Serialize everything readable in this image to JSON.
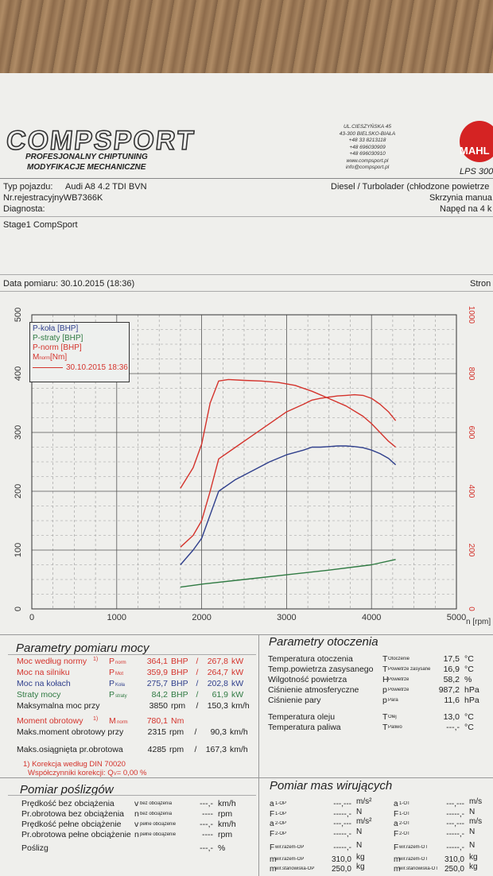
{
  "header": {
    "logo_text": "COMPSPORT",
    "tagline1": "PROFESJONALNY CHIPTUNING",
    "tagline2": "MODYFIKACJE MECHANICZNE",
    "address": [
      "UL.CIESZYŃSKA 45",
      "43-300 BIELSKO-BIAŁA",
      "+48 33 8213118",
      "+48 696030909",
      "+48 696030910",
      "www.compsport.pl",
      "info@compsport.pl"
    ],
    "brand2": "MAHL",
    "brand2_model": "LPS 300"
  },
  "vehicle": {
    "type_label": "Typ pojazdu:",
    "type_value": "Audi A8 4.2 TDI BVN",
    "reg_label": "Nr.rejestracyjny",
    "reg_value": "WB7366K",
    "diag_label": "Diagnosta:",
    "engine": "Diesel / Turbolader (chłodzone powietrze",
    "gearbox": "Skrzynia manua",
    "drive": "Napęd na 4 k",
    "stage": "Stage1 CompSport"
  },
  "measurement": {
    "date_label": "Data pomiaru: 30.10.2015 (18:36)",
    "page_label": "Stron"
  },
  "chart_data": {
    "type": "line",
    "x_unit": "n [rpm]",
    "xlim": [
      0,
      5000
    ],
    "ylim_left": [
      0,
      500
    ],
    "ylim_right": [
      0,
      1000
    ],
    "x_ticks": [
      0,
      1000,
      2000,
      3000,
      4000,
      5000
    ],
    "y_ticks_left": [
      0,
      100,
      200,
      300,
      400,
      500
    ],
    "y_ticks_right": [
      0,
      200,
      400,
      600,
      800,
      1000
    ],
    "grid": true,
    "legend_position": "top-left",
    "legend_date": "30.10.2015 18:36",
    "series": [
      {
        "name": "P-koła [BHP]",
        "color": "#2f3f8c",
        "axis": "left",
        "x": [
          1750,
          1900,
          2000,
          2100,
          2200,
          2400,
          2600,
          2800,
          3000,
          3200,
          3300,
          3400,
          3500,
          3600,
          3700,
          3800,
          3900,
          4000,
          4100,
          4200,
          4285
        ],
        "y": [
          75,
          100,
          120,
          160,
          200,
          220,
          235,
          250,
          262,
          270,
          275,
          275,
          276,
          277,
          277,
          276,
          274,
          270,
          264,
          256,
          245
        ]
      },
      {
        "name": "P-straty [BHP]",
        "color": "#2f7a42",
        "axis": "left",
        "x": [
          1750,
          2000,
          2500,
          3000,
          3500,
          4000,
          4285
        ],
        "y": [
          37,
          42,
          50,
          58,
          66,
          75,
          84
        ]
      },
      {
        "name": "P-norm [BHP]",
        "color": "#d4332c",
        "axis": "left",
        "x": [
          1750,
          1900,
          2000,
          2100,
          2200,
          2400,
          2600,
          2800,
          3000,
          3200,
          3300,
          3400,
          3500,
          3600,
          3700,
          3800,
          3900,
          4000,
          4100,
          4200,
          4285
        ],
        "y": [
          105,
          125,
          150,
          200,
          255,
          275,
          295,
          315,
          335,
          348,
          355,
          358,
          360,
          362,
          363,
          364,
          363,
          358,
          348,
          335,
          320
        ]
      },
      {
        "name": "M",
        "name_sub": "norm",
        "name_unit": "[Nm]",
        "color": "#d4332c",
        "axis": "right",
        "x": [
          1750,
          1900,
          2000,
          2100,
          2200,
          2315,
          2500,
          2700,
          2900,
          3100,
          3300,
          3500,
          3700,
          3900,
          4000,
          4100,
          4200,
          4285
        ],
        "y": [
          410,
          480,
          560,
          700,
          775,
          780,
          777,
          775,
          770,
          760,
          740,
          715,
          690,
          655,
          630,
          600,
          570,
          550
        ]
      }
    ]
  },
  "params": {
    "title": "Parametry pomiaru mocy",
    "rows": [
      {
        "label": "Moc według normy",
        "mark": "1)",
        "sym": "P",
        "sub": "norm",
        "v1": "364,1",
        "u1": "BHP",
        "sep": "/",
        "v2": "267,8",
        "u2": "kW",
        "cls": "red"
      },
      {
        "label": "Moc na silniku",
        "mark": "",
        "sym": "P",
        "sub": "Mot",
        "v1": "359,9",
        "u1": "BHP",
        "sep": "/",
        "v2": "264,7",
        "u2": "kW",
        "cls": "red"
      },
      {
        "label": "Moc na kołach",
        "mark": "",
        "sym": "P",
        "sub": "Koła",
        "v1": "275,7",
        "u1": "BHP",
        "sep": "/",
        "v2": "202,8",
        "u2": "kW",
        "cls": "blue"
      },
      {
        "label": "Straty mocy",
        "mark": "",
        "sym": "P",
        "sub": "straty",
        "v1": "84,2",
        "u1": "BHP",
        "sep": "/",
        "v2": "61,9",
        "u2": "kW",
        "cls": "green"
      },
      {
        "label": "Maksymalna moc przy",
        "mark": "",
        "sym": "",
        "sub": "",
        "v1": "3850",
        "u1": "rpm",
        "sep": "/",
        "v2": "150,3",
        "u2": "km/h",
        "cls": ""
      }
    ],
    "torque": {
      "label": "Moment obrotowy",
      "mark": "1)",
      "sym": "M",
      "sub": "norm",
      "v1": "780,1",
      "u1": "Nm"
    },
    "torque_rpm": {
      "label": "Maks.moment obrotowy przy",
      "v1": "2315",
      "u1": "rpm",
      "sep": "/",
      "v2": "90,3",
      "u2": "km/h"
    },
    "max_rpm": {
      "label": "Maks.osiągnięta pr.obrotowa",
      "v1": "4285",
      "u1": "rpm",
      "sep": "/",
      "v2": "167,3",
      "u2": "km/h"
    },
    "correction1": "1) Korekcja według DIN 70020",
    "correction2": "Współczynniki korekcji: Q",
    "correction_sub": "V",
    "correction_val": "=      0,00 %"
  },
  "env": {
    "title": "Parametry otoczenia",
    "rows": [
      {
        "label": "Temperatura otoczenia",
        "sym": "T",
        "sub": "Otoczenie",
        "val": "17,5",
        "unit": "°C"
      },
      {
        "label": "Temp.powietrza zasysanego",
        "sym": "T",
        "sub": "Powietrze zasysane",
        "val": "16,9",
        "unit": "°C"
      },
      {
        "label": "Wilgotność powietrza",
        "sym": "H",
        "sub": "Powietrze",
        "val": "58,2",
        "unit": "%"
      },
      {
        "label": "Ciśnienie atmosferyczne",
        "sym": "p",
        "sub": "Powietrze",
        "val": "987,2",
        "unit": "hPa"
      },
      {
        "label": "Ciśnienie pary",
        "sym": "p",
        "sub": "Para",
        "val": "11,6",
        "unit": "hPa"
      },
      {
        "label": "Temperatura oleju",
        "sym": "T",
        "sub": "Olej",
        "val": "13,0",
        "unit": "°C"
      },
      {
        "label": "Temperatura paliwa",
        "sym": "T",
        "sub": "Paliwo",
        "val": "---,-",
        "unit": "°C"
      }
    ]
  },
  "slip": {
    "title": "Pomiar poślizgów",
    "rows": [
      {
        "label": "Prędkość bez obciążenia",
        "sym": "v",
        "sub": "bez obciążenia",
        "val": "---,-",
        "unit": "km/h"
      },
      {
        "label": "Pr.obrotowa bez obciążenia",
        "sym": "n",
        "sub": "bez obciążenia",
        "val": "----",
        "unit": "rpm"
      },
      {
        "label": "Prędkość pełne obciążenie",
        "sym": "v",
        "sub": "pełne obciążenie",
        "val": "---,-",
        "unit": "km/h"
      },
      {
        "label": "Pr.obrotowa pełne obciążenie",
        "sym": "n",
        "sub": "pełne obciążenie",
        "val": "----",
        "unit": "rpm"
      },
      {
        "label": "Poślizg",
        "sym": "",
        "sub": "",
        "val": "---,-",
        "unit": "%"
      }
    ]
  },
  "mass": {
    "title": "Pomiar mas wirujących",
    "left": [
      {
        "sym": "a",
        "sub": "1-OP",
        "val": "---,---",
        "unit": "m/s²"
      },
      {
        "sym": "F",
        "sub": "1-OP",
        "val": "-----,-",
        "unit": "N"
      },
      {
        "sym": "a",
        "sub": "2-OP",
        "val": "---,---",
        "unit": "m/s²"
      },
      {
        "sym": "F",
        "sub": "2-OP",
        "val": "-----,-",
        "unit": "N"
      },
      {
        "sym": "F",
        "sub": "wir.razem-OP",
        "val": "-----,-",
        "unit": "N"
      },
      {
        "sym": "m",
        "sub": "wir.razem-OP",
        "val": "310,0",
        "unit": "kg"
      },
      {
        "sym": "m",
        "sub": "wir.stanowiska-OP",
        "val": "250,0",
        "unit": "kg"
      }
    ],
    "right": [
      {
        "sym": "a",
        "sub": "1-OT",
        "val": "---,---",
        "unit": "m/s"
      },
      {
        "sym": "F",
        "sub": "1-OT",
        "val": "-----,-",
        "unit": "N"
      },
      {
        "sym": "a",
        "sub": "2-OT",
        "val": "---,---",
        "unit": "m/s"
      },
      {
        "sym": "F",
        "sub": "2-OT",
        "val": "-----,-",
        "unit": "N"
      },
      {
        "sym": "F",
        "sub": "wir.razem-OT",
        "val": "-----,-",
        "unit": "N"
      },
      {
        "sym": "m",
        "sub": "wir.razem-OT",
        "val": "310,0",
        "unit": "kg"
      },
      {
        "sym": "m",
        "sub": "wir.stanowiska-OT",
        "val": "250,0",
        "unit": "kg"
      }
    ]
  }
}
